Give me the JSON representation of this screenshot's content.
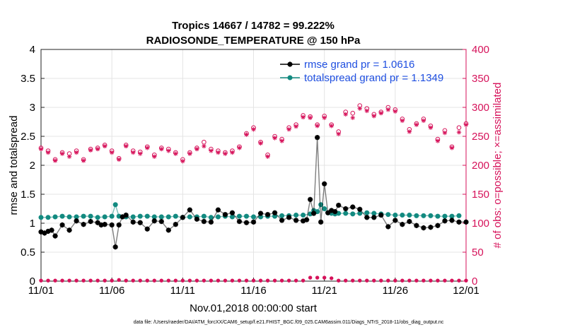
{
  "chart_data": {
    "type": "line",
    "title": [
      "Tropics 14667 / 14782 = 99.222%",
      "RADIOSONDE_TEMPERATURE @ 150 hPa"
    ],
    "xlabel": "Nov.01,2018 00:00:00 start",
    "ylabel_left": "rmse and totalspread",
    "ylabel_right": "# of obs: o=possible; ×=assimilated",
    "xlim": [
      0,
      30
    ],
    "ylim_left": [
      0,
      4
    ],
    "ylim_right": [
      0,
      400
    ],
    "x_ticks": [
      {
        "value": 0,
        "label": "11/01"
      },
      {
        "value": 5,
        "label": "11/06"
      },
      {
        "value": 10,
        "label": "11/11"
      },
      {
        "value": 15,
        "label": "11/16"
      },
      {
        "value": 20,
        "label": "11/21"
      },
      {
        "value": 25,
        "label": "11/26"
      },
      {
        "value": 30,
        "label": "12/01"
      }
    ],
    "y_ticks_left": [
      0,
      0.5,
      1,
      1.5,
      2,
      2.5,
      3,
      3.5,
      4
    ],
    "y_ticks_right": [
      0,
      50,
      100,
      150,
      200,
      250,
      300,
      350,
      400
    ],
    "grid": true,
    "legend_position": "top-right",
    "colors": {
      "rmse": "#000000",
      "spread": "#128a80",
      "obs": "#d6125a",
      "right_axis": "#d6125a",
      "legend_text": "#1f4fe0"
    },
    "series": [
      {
        "name": "rmse grand pr = 1.0616",
        "axis": "left",
        "style": "points",
        "x": [
          0,
          0.25,
          0.5,
          0.75,
          1,
          1.5,
          2,
          2.5,
          3,
          3.5,
          4,
          4.25,
          4.5,
          5,
          5.25,
          5.5,
          5.75,
          6,
          6.5,
          7,
          7.5,
          8,
          8.5,
          9,
          9.5,
          10,
          10.5,
          11,
          11.5,
          12,
          12.5,
          13,
          13.5,
          14,
          14.5,
          15,
          15.5,
          16,
          16.5,
          17,
          17.5,
          18,
          18.5,
          18.75,
          19,
          19.25,
          19.5,
          19.75,
          20,
          20.25,
          20.5,
          20.75,
          21,
          21.5,
          22,
          22.5,
          23,
          23.5,
          24,
          24.5,
          25,
          25.5,
          26,
          26.5,
          27,
          27.5,
          28,
          28.5,
          29,
          29.5,
          30
        ],
        "y": [
          0.85,
          0.83,
          0.86,
          0.88,
          0.78,
          0.97,
          0.88,
          1.04,
          0.98,
          1.03,
          1.01,
          0.97,
          0.98,
          0.97,
          0.59,
          0.97,
          1.11,
          1.14,
          1.02,
          1.01,
          0.9,
          1.04,
          1.03,
          0.88,
          0.98,
          1.1,
          1.23,
          1.07,
          1.03,
          1.02,
          1.23,
          1.15,
          1.18,
          1.03,
          1.01,
          1.02,
          1.17,
          1.15,
          1.18,
          1.05,
          1.1,
          1.05,
          1.04,
          1.06,
          1.41,
          1.17,
          2.48,
          1.02,
          1.68,
          1.18,
          1.22,
          1.2,
          1.31,
          1.25,
          1.28,
          1.24,
          1.1,
          1.1,
          1.14,
          0.94,
          1.05,
          0.98,
          1.03,
          0.96,
          0.92,
          0.93,
          0.96,
          1.04,
          1.05,
          1.02,
          1.02
        ]
      },
      {
        "name": "totalspread grand pr = 1.1349",
        "axis": "left",
        "style": "points",
        "x": [
          0,
          0.5,
          1,
          1.5,
          2,
          2.5,
          3,
          3.5,
          4,
          4.5,
          5,
          5.25,
          5.5,
          6,
          6.5,
          7,
          7.5,
          8,
          8.5,
          9,
          9.5,
          10,
          10.5,
          11,
          11.5,
          12,
          12.5,
          13,
          13.5,
          14,
          14.5,
          15,
          15.5,
          16,
          16.5,
          17,
          17.5,
          18,
          18.5,
          19,
          19.25,
          19.5,
          19.75,
          20,
          20.25,
          20.5,
          20.75,
          21,
          21.5,
          22,
          22.5,
          23,
          23.5,
          24,
          24.5,
          25,
          25.5,
          26,
          26.5,
          27,
          27.5,
          28,
          28.5,
          29,
          29.5
        ],
        "y": [
          1.1,
          1.1,
          1.11,
          1.12,
          1.11,
          1.11,
          1.12,
          1.12,
          1.1,
          1.11,
          1.12,
          1.32,
          1.12,
          1.11,
          1.11,
          1.12,
          1.12,
          1.11,
          1.11,
          1.11,
          1.12,
          1.1,
          1.11,
          1.11,
          1.12,
          1.1,
          1.11,
          1.12,
          1.11,
          1.12,
          1.12,
          1.11,
          1.11,
          1.12,
          1.12,
          1.13,
          1.13,
          1.14,
          1.14,
          1.16,
          1.22,
          1.2,
          1.32,
          1.25,
          1.18,
          1.17,
          1.16,
          1.17,
          1.17,
          1.16,
          1.17,
          1.18,
          1.17,
          1.16,
          1.15,
          1.14,
          1.14,
          1.14,
          1.13,
          1.13,
          1.13,
          1.12,
          1.12,
          1.12,
          1.13
        ]
      },
      {
        "name": "obs possible",
        "axis": "right",
        "style": "circle",
        "x": [
          0,
          0.5,
          1,
          1.5,
          2,
          2.5,
          3,
          3.5,
          4,
          4.5,
          5,
          5.5,
          6,
          6.5,
          7,
          7.5,
          8,
          8.5,
          9,
          9.5,
          10,
          10.5,
          11,
          11.5,
          12,
          12.5,
          13,
          13.5,
          14,
          14.5,
          15,
          15.5,
          16,
          16.5,
          17,
          17.5,
          18,
          18.5,
          19,
          19.5,
          20,
          20.5,
          21,
          21.5,
          22,
          22.5,
          23,
          23.5,
          24,
          24.5,
          25,
          25.5,
          26,
          26.5,
          27,
          27.5,
          28,
          28.5,
          29,
          29.5,
          30
        ],
        "y": [
          230,
          225,
          210,
          222,
          220,
          225,
          210,
          228,
          230,
          235,
          225,
          212,
          235,
          225,
          223,
          232,
          218,
          230,
          228,
          222,
          210,
          222,
          230,
          240,
          228,
          225,
          222,
          225,
          232,
          255,
          265,
          240,
          218,
          250,
          245,
          265,
          270,
          286,
          284,
          270,
          285,
          270,
          258,
          292,
          290,
          303,
          298,
          288,
          292,
          300,
          296,
          280,
          262,
          272,
          280,
          268,
          245,
          260,
          232,
          265,
          272
        ]
      },
      {
        "name": "obs assimilated",
        "axis": "right",
        "style": "star",
        "x": [
          0,
          0.5,
          1,
          1.5,
          2,
          2.5,
          3,
          3.5,
          4,
          4.5,
          5,
          5.5,
          6,
          6.5,
          7,
          7.5,
          8,
          8.5,
          9,
          9.5,
          10,
          10.5,
          11,
          11.5,
          12,
          12.5,
          13,
          13.5,
          14,
          14.5,
          15,
          15.5,
          16,
          16.5,
          17,
          17.5,
          18,
          18.5,
          19,
          19.5,
          20,
          20.5,
          21,
          21.5,
          22,
          22.5,
          23,
          23.5,
          24,
          24.5,
          25,
          25.5,
          26,
          26.5,
          27,
          27.5,
          28,
          28.5,
          29,
          29.5,
          30
        ],
        "y": [
          228,
          222,
          208,
          220,
          215,
          222,
          208,
          226,
          228,
          233,
          222,
          210,
          233,
          222,
          220,
          230,
          215,
          228,
          225,
          220,
          207,
          220,
          228,
          233,
          225,
          222,
          220,
          222,
          230,
          253,
          262,
          238,
          215,
          247,
          242,
          262,
          267,
          283,
          282,
          268,
          282,
          268,
          254,
          288,
          282,
          298,
          294,
          285,
          290,
          296,
          293,
          277,
          258,
          270,
          277,
          265,
          242,
          256,
          230,
          257,
          270
        ]
      },
      {
        "name": "obs rejected",
        "axis": "right",
        "style": "circle",
        "x": [
          0,
          0.5,
          1,
          1.5,
          2,
          2.5,
          3,
          3.5,
          4,
          4.5,
          5,
          5.5,
          6,
          6.5,
          7,
          7.5,
          8,
          8.5,
          9,
          9.5,
          10,
          10.5,
          11,
          11.5,
          12,
          12.5,
          13,
          13.5,
          14,
          14.5,
          15,
          15.5,
          16,
          16.5,
          17,
          17.5,
          18,
          18.5,
          19,
          19.5,
          20,
          20.5,
          21,
          21.5,
          22,
          22.5,
          23,
          23.5,
          24,
          24.5,
          25,
          25.5,
          26,
          26.5,
          27,
          27.5,
          28,
          28.5,
          29,
          29.5,
          30
        ],
        "y": [
          1,
          1,
          1,
          1,
          1,
          1,
          1,
          1,
          1,
          1,
          1,
          2,
          1,
          1,
          1,
          1,
          1,
          1,
          1,
          1,
          1,
          1,
          1,
          1,
          1,
          1,
          1,
          1,
          1,
          1,
          1,
          1,
          1,
          1,
          1,
          1,
          1,
          1,
          6,
          6,
          6,
          5,
          1,
          1,
          1,
          1,
          1,
          1,
          1,
          1,
          1,
          1,
          1,
          1,
          1,
          1,
          1,
          1,
          1,
          1,
          1
        ]
      }
    ],
    "legend": [
      "rmse grand pr = 1.0616",
      "totalspread grand pr = 1.1349"
    ],
    "footnote": "data file: /Users/raeder/DAI/ATM_forcXX/CAM6_setup/f.e21.FHIST_BGC.f09_025.CAM6assim.011/Diags_NTrS_2018-11/obs_diag_output.nc"
  }
}
